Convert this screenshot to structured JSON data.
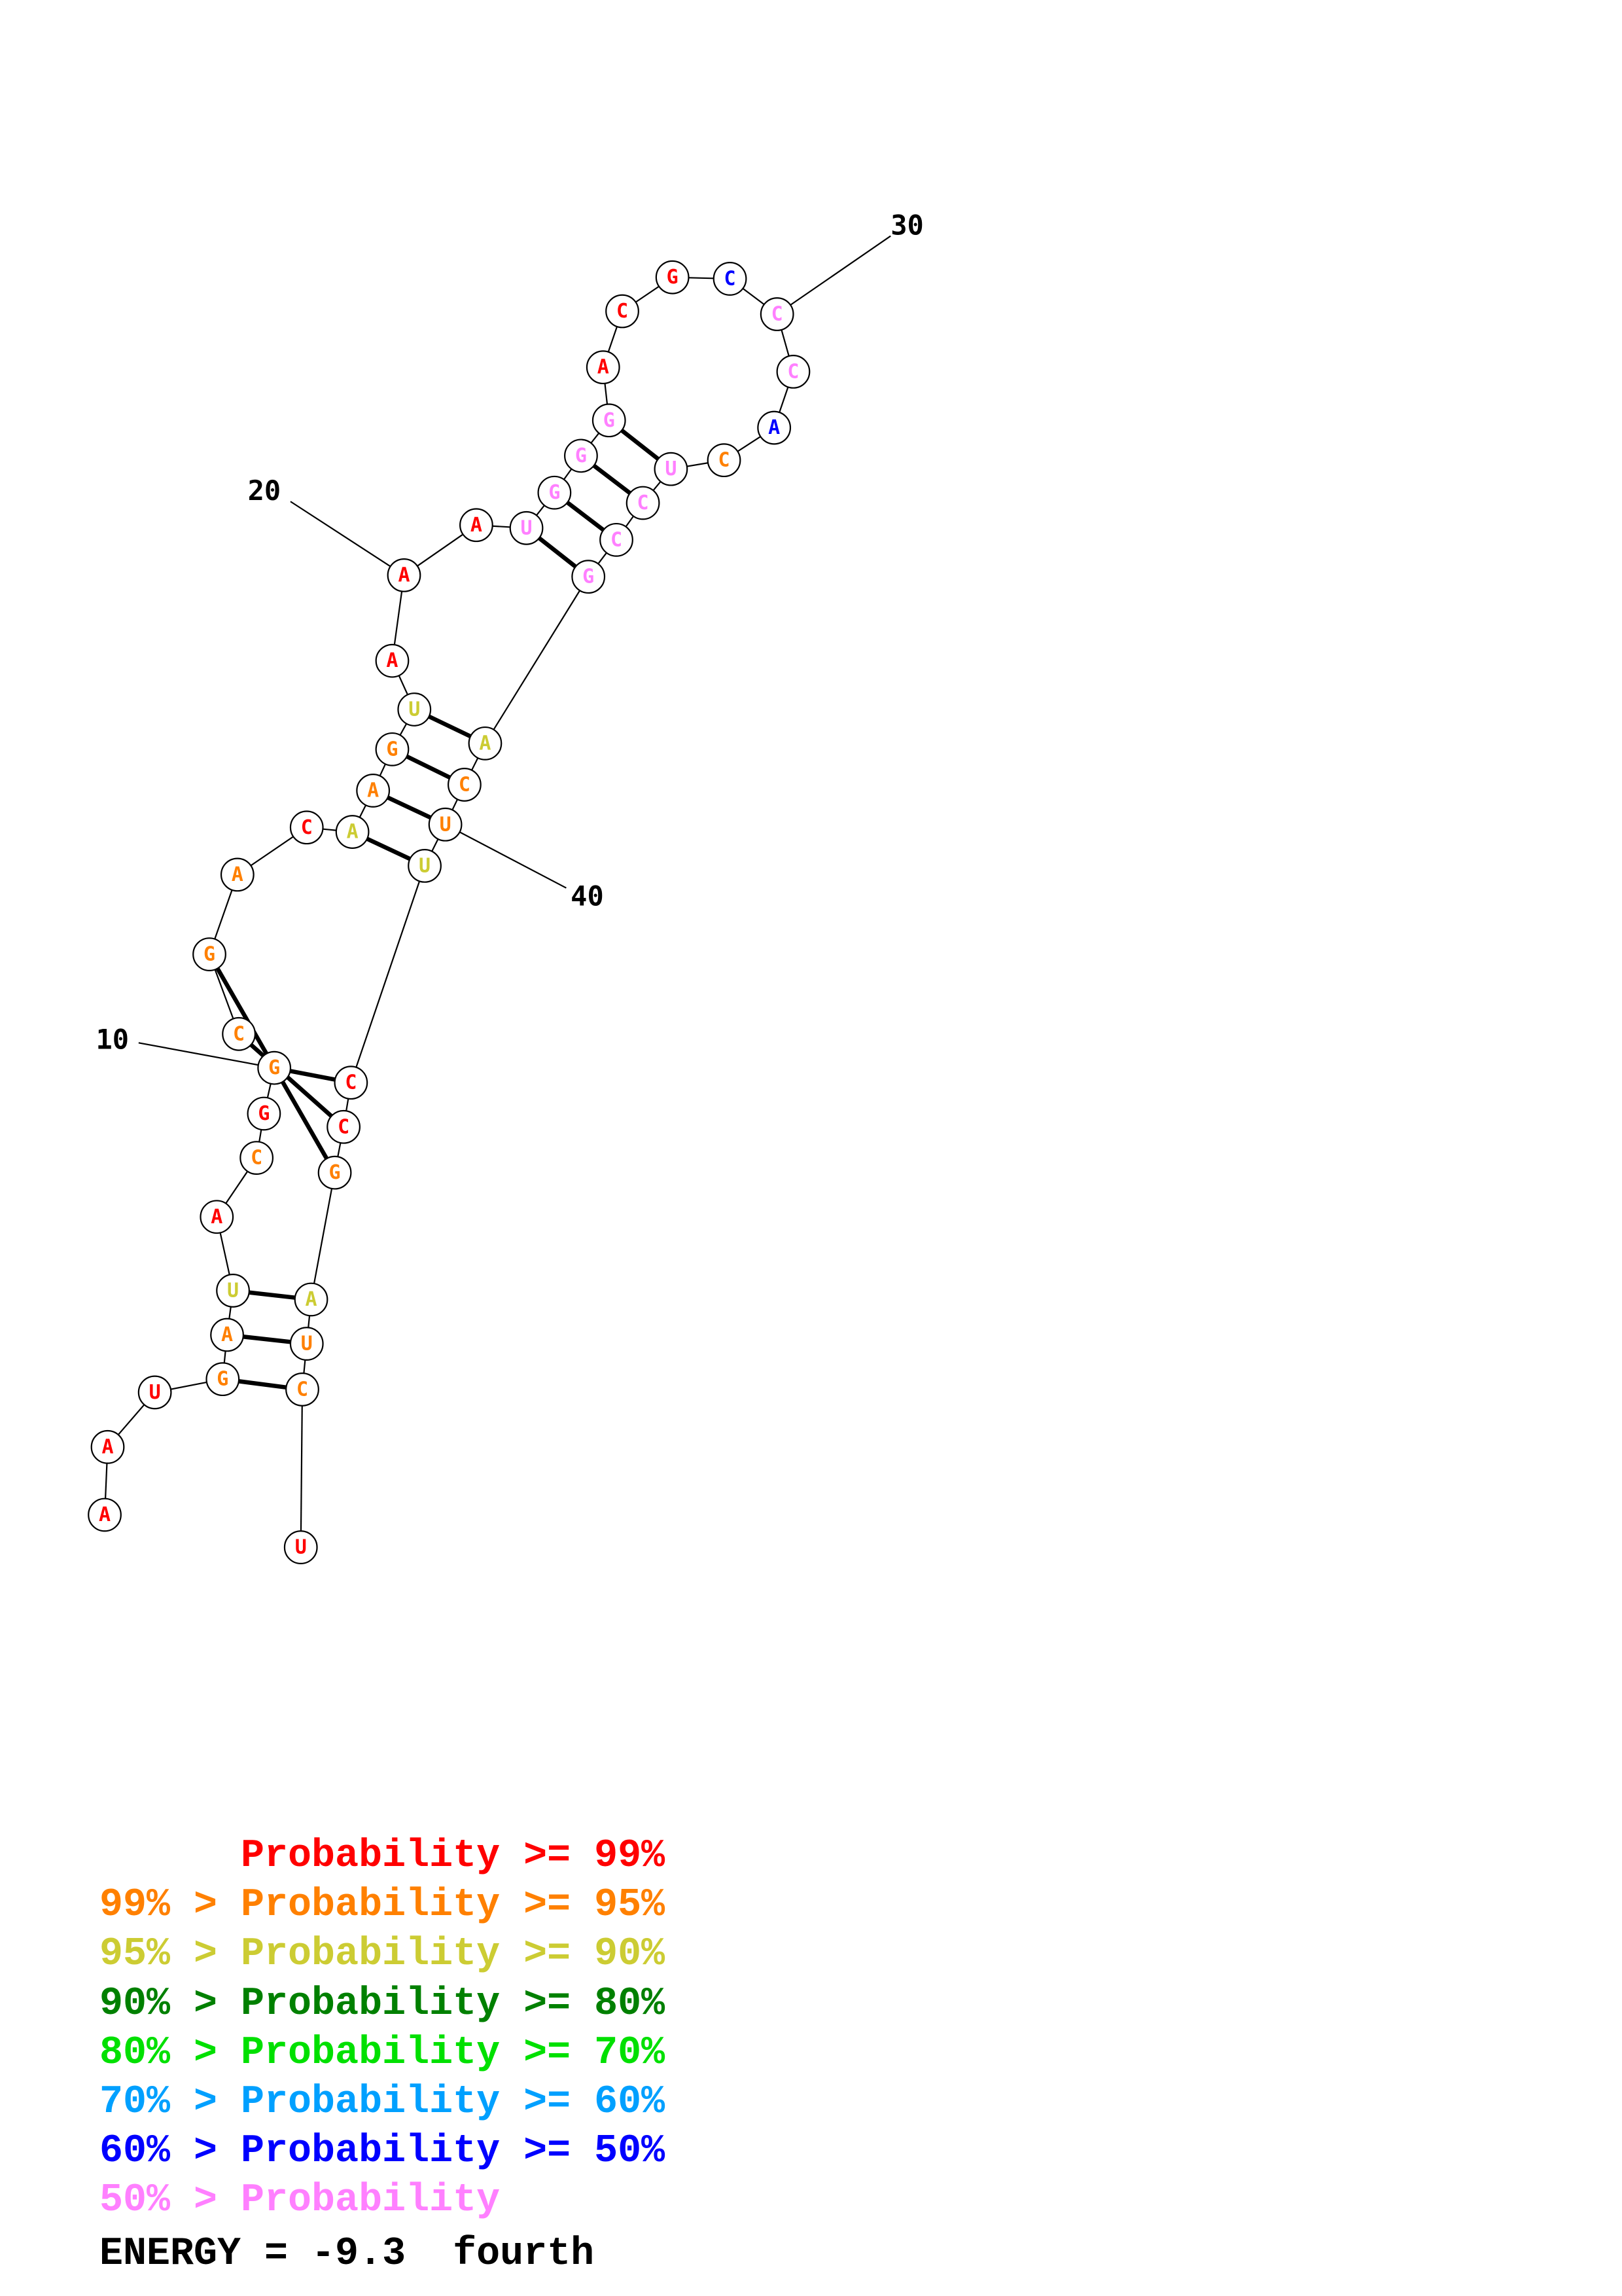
{
  "palette": {
    "red": "#ff0000",
    "orange": "#ff8000",
    "yellow": "#cccc33",
    "darkgreen": "#008000",
    "green": "#00e000",
    "cyan": "#00a0ff",
    "blue": "#0000ff",
    "pink": "#ff80ff"
  },
  "sequence": [
    {
      "n": 1,
      "base": "A",
      "prob": "red"
    },
    {
      "n": 2,
      "base": "A",
      "prob": "red"
    },
    {
      "n": 3,
      "base": "U",
      "prob": "red"
    },
    {
      "n": 4,
      "base": "G",
      "prob": "orange"
    },
    {
      "n": 5,
      "base": "A",
      "prob": "orange"
    },
    {
      "n": 6,
      "base": "U",
      "prob": "yellow"
    },
    {
      "n": 7,
      "base": "A",
      "prob": "red"
    },
    {
      "n": 8,
      "base": "C",
      "prob": "orange"
    },
    {
      "n": 9,
      "base": "G",
      "prob": "red"
    },
    {
      "n": 10,
      "base": "G",
      "prob": "orange"
    },
    {
      "n": 11,
      "base": "C",
      "prob": "orange"
    },
    {
      "n": 12,
      "base": "G",
      "prob": "orange"
    },
    {
      "n": 13,
      "base": "A",
      "prob": "orange"
    },
    {
      "n": 14,
      "base": "C",
      "prob": "red"
    },
    {
      "n": 15,
      "base": "A",
      "prob": "yellow"
    },
    {
      "n": 16,
      "base": "A",
      "prob": "orange"
    },
    {
      "n": 17,
      "base": "G",
      "prob": "orange"
    },
    {
      "n": 18,
      "base": "U",
      "prob": "yellow"
    },
    {
      "n": 19,
      "base": "A",
      "prob": "red"
    },
    {
      "n": 20,
      "base": "A",
      "prob": "red"
    },
    {
      "n": 21,
      "base": "A",
      "prob": "red"
    },
    {
      "n": 22,
      "base": "U",
      "prob": "pink"
    },
    {
      "n": 23,
      "base": "G",
      "prob": "pink"
    },
    {
      "n": 24,
      "base": "G",
      "prob": "pink"
    },
    {
      "n": 25,
      "base": "G",
      "prob": "pink"
    },
    {
      "n": 26,
      "base": "A",
      "prob": "red"
    },
    {
      "n": 27,
      "base": "C",
      "prob": "red"
    },
    {
      "n": 28,
      "base": "G",
      "prob": "red"
    },
    {
      "n": 29,
      "base": "C",
      "prob": "blue"
    },
    {
      "n": 30,
      "base": "C",
      "prob": "pink"
    },
    {
      "n": 31,
      "base": "C",
      "prob": "pink"
    },
    {
      "n": 32,
      "base": "A",
      "prob": "blue"
    },
    {
      "n": 33,
      "base": "C",
      "prob": "orange"
    },
    {
      "n": 34,
      "base": "U",
      "prob": "pink"
    },
    {
      "n": 35,
      "base": "C",
      "prob": "pink"
    },
    {
      "n": 36,
      "base": "C",
      "prob": "pink"
    },
    {
      "n": 37,
      "base": "G",
      "prob": "pink"
    },
    {
      "n": 38,
      "base": "A",
      "prob": "yellow"
    },
    {
      "n": 39,
      "base": "C",
      "prob": "orange"
    },
    {
      "n": 40,
      "base": "U",
      "prob": "orange"
    },
    {
      "n": 41,
      "base": "U",
      "prob": "yellow"
    },
    {
      "n": 42,
      "base": "C",
      "prob": "red"
    },
    {
      "n": 43,
      "base": "C",
      "prob": "red"
    },
    {
      "n": 44,
      "base": "G",
      "prob": "orange"
    },
    {
      "n": 45,
      "base": "A",
      "prob": "yellow"
    },
    {
      "n": 46,
      "base": "U",
      "prob": "orange"
    },
    {
      "n": 47,
      "base": "C",
      "prob": "orange"
    },
    {
      "n": 48,
      "base": "U",
      "prob": "red"
    }
  ],
  "pairs": [
    [
      4,
      47
    ],
    [
      5,
      46
    ],
    [
      6,
      45
    ],
    [
      10,
      42
    ],
    [
      11,
      43
    ],
    [
      12,
      44
    ],
    [
      15,
      41
    ],
    [
      16,
      40
    ],
    [
      17,
      39
    ],
    [
      18,
      38
    ],
    [
      22,
      37
    ],
    [
      23,
      36
    ],
    [
      24,
      35
    ],
    [
      25,
      34
    ]
  ],
  "index_labels": [
    {
      "n": 10,
      "text": "10"
    },
    {
      "n": 20,
      "text": "20"
    },
    {
      "n": 30,
      "text": "30"
    },
    {
      "n": 40,
      "text": "40"
    }
  ],
  "legend": [
    {
      "text": "      Probability >= 99%",
      "color": "red"
    },
    {
      "text": "99% > Probability >= 95%",
      "color": "orange"
    },
    {
      "text": "95% > Probability >= 90%",
      "color": "yellow"
    },
    {
      "text": "90% > Probability >= 80%",
      "color": "darkgreen"
    },
    {
      "text": "80% > Probability >= 70%",
      "color": "green"
    },
    {
      "text": "70% > Probability >= 60%",
      "color": "cyan"
    },
    {
      "text": "60% > Probability >= 50%",
      "color": "blue"
    },
    {
      "text": "50% > Probability",
      "color": "pink"
    }
  ],
  "energy_label": "ENERGY = -9.3  fourth"
}
